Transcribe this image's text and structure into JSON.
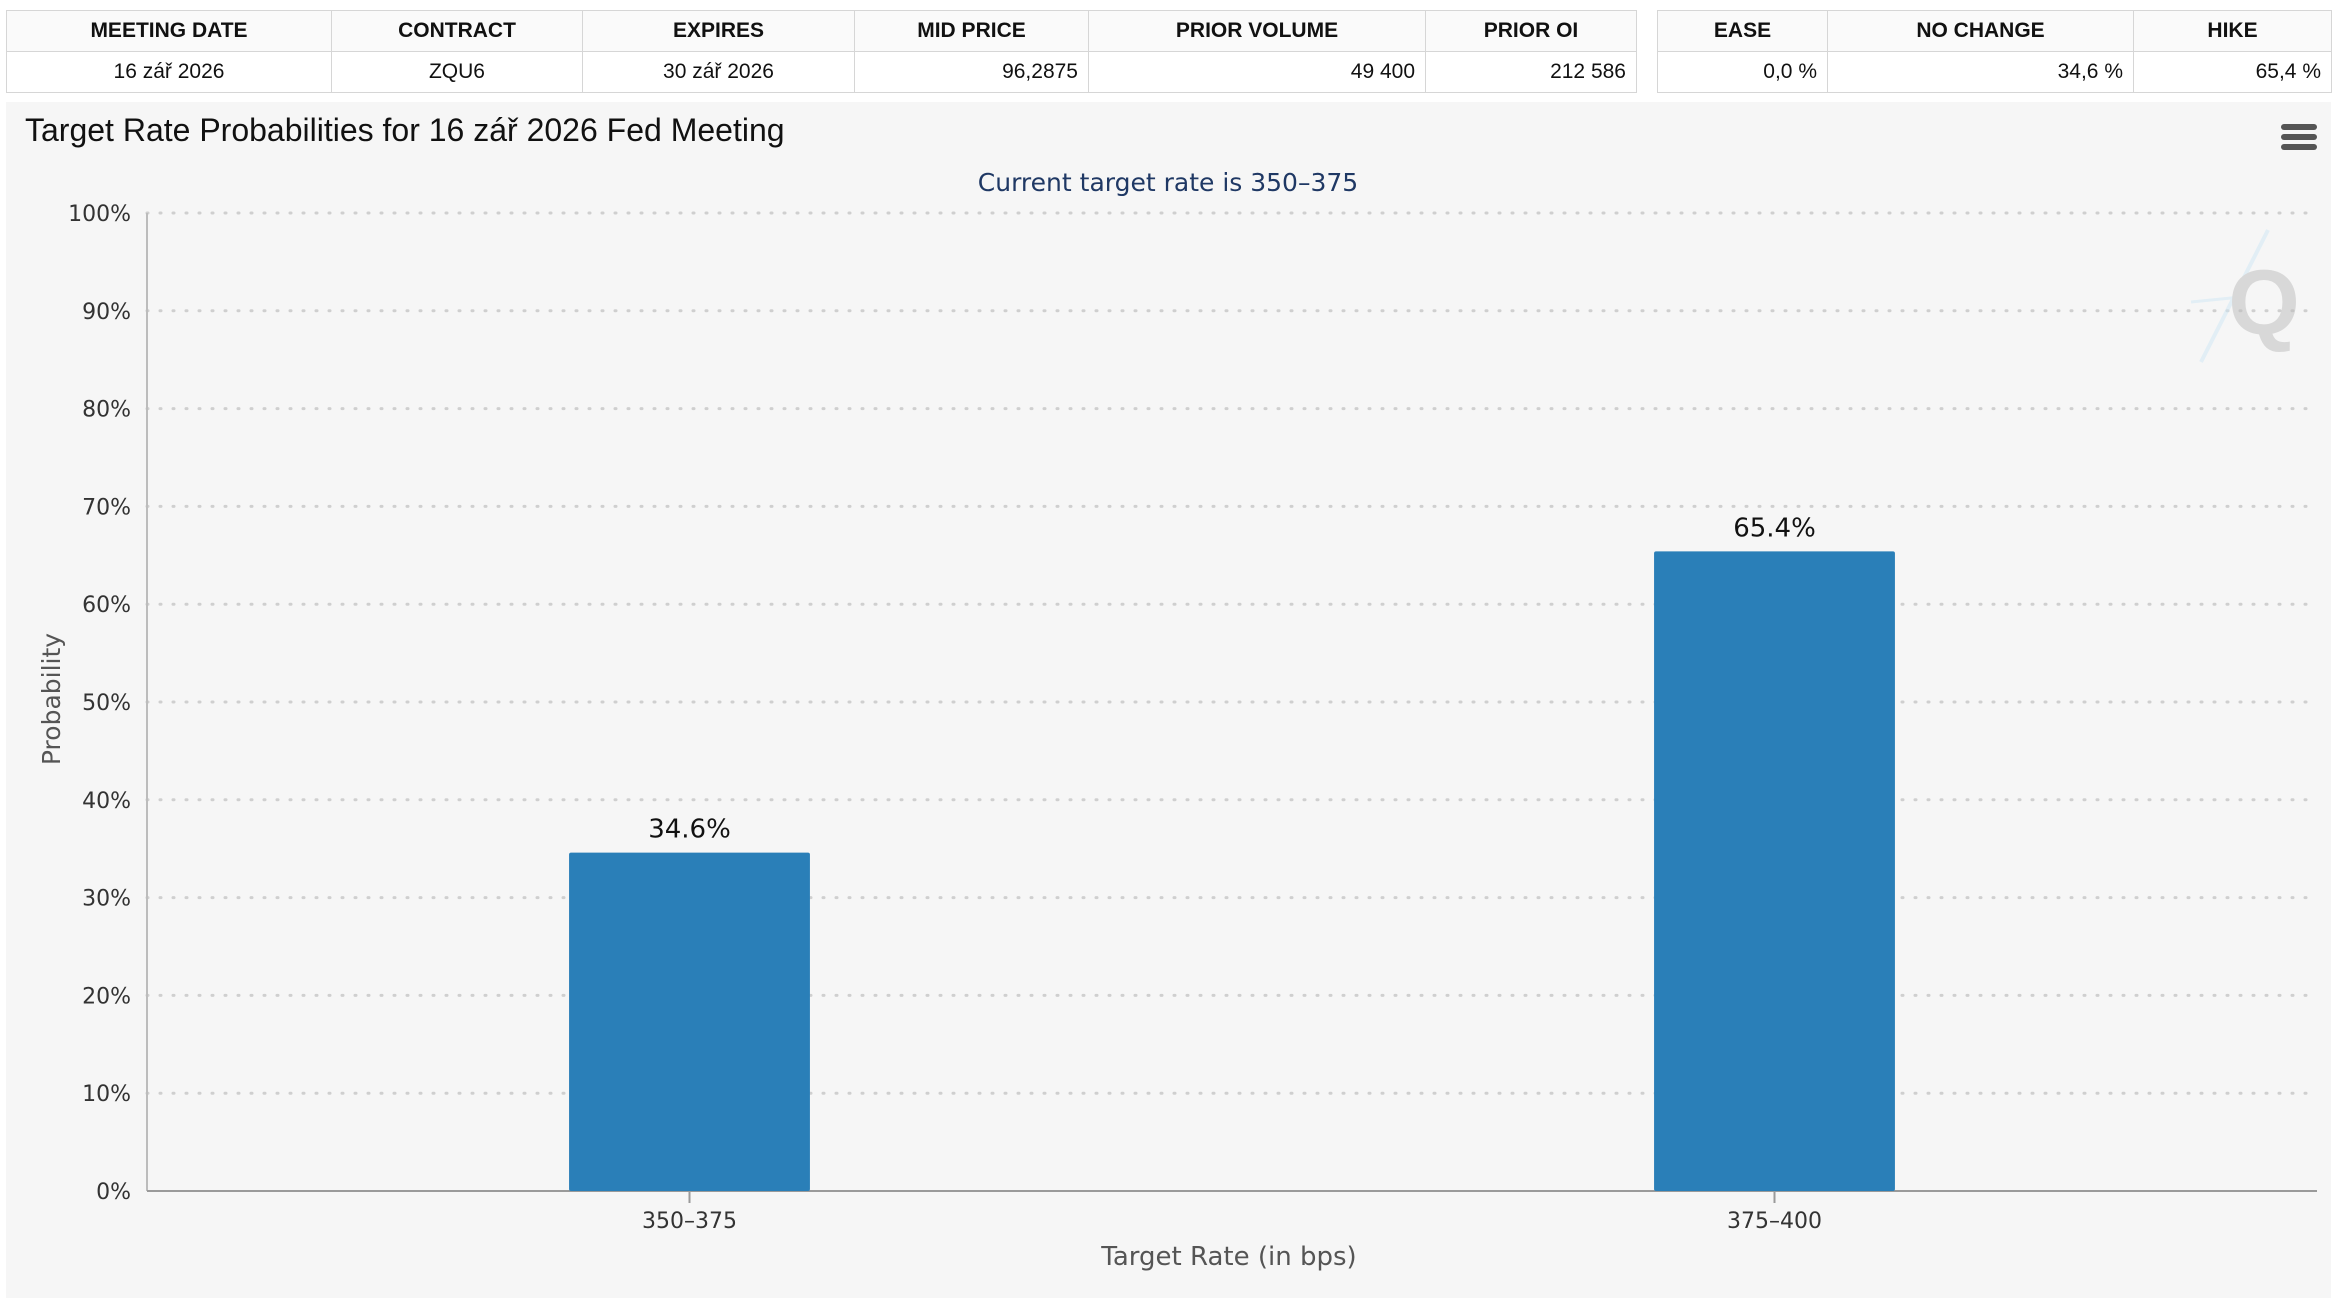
{
  "main_table": {
    "headers": [
      "MEETING DATE",
      "CONTRACT",
      "EXPIRES",
      "MID PRICE",
      "PRIOR VOLUME",
      "PRIOR OI"
    ],
    "row": [
      "16 zář 2026",
      "ZQU6",
      "30 zář 2026",
      "96,2875",
      "49 400",
      "212 586"
    ]
  },
  "prob_table": {
    "headers": [
      "EASE",
      "NO CHANGE",
      "HIKE"
    ],
    "row": [
      "0,0 %",
      "34,6 %",
      "65,4 %"
    ]
  },
  "chart": {
    "title": "Target Rate Probabilities for 16 zář 2026 Fed Meeting",
    "menu_icon": "hamburger-menu-icon",
    "watermark_icon": "q-logo-watermark-icon"
  },
  "chart_data": {
    "type": "bar",
    "subtitle": "Current target rate is 350–375",
    "categories": [
      "350–375",
      "375–400"
    ],
    "values": [
      34.6,
      65.4
    ],
    "data_labels": [
      "34.6%",
      "65.4%"
    ],
    "xlabel": "Target Rate (in bps)",
    "ylabel": "Probability",
    "ylim": [
      0,
      100
    ],
    "yticks": [
      "0%",
      "10%",
      "20%",
      "30%",
      "40%",
      "50%",
      "60%",
      "70%",
      "80%",
      "90%",
      "100%"
    ],
    "grid": true,
    "bar_color": "#2a7fb8",
    "subtitle_color": "#1f3864"
  }
}
